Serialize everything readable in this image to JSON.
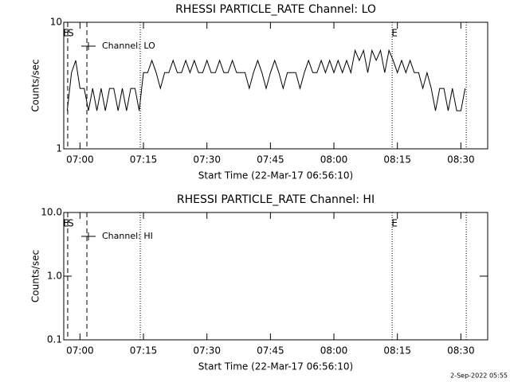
{
  "chart_data": [
    {
      "type": "line",
      "title": "RHESSI PARTICLE_RATE Channel: LO",
      "xlabel": "Start Time (22-Mar-17 06:56:10)",
      "ylabel": "Counts/sec",
      "xlim": [
        "06:56:10",
        "08:36:20"
      ],
      "xticks": [
        "07:00",
        "07:15",
        "07:30",
        "07:45",
        "08:00",
        "08:15",
        "08:30"
      ],
      "ylim": [
        1,
        10
      ],
      "yticks": [
        1,
        10
      ],
      "log_y": true,
      "legend": "upper left",
      "vlines": [
        {
          "x": "06:57:06",
          "style": "dashed"
        },
        {
          "x": "07:01:38",
          "style": "dashed"
        },
        {
          "x": "07:14:15",
          "style": "dotted"
        },
        {
          "x": "08:13:46",
          "style": "dotted"
        },
        {
          "x": "08:31:16",
          "style": "dotted"
        }
      ],
      "annotations": [
        {
          "text": "E",
          "x": "06:56:45"
        },
        {
          "text": "S",
          "x": "06:57:50"
        },
        {
          "text": "E",
          "x": "08:14:20"
        }
      ],
      "series": [
        {
          "name": "Channel: LO",
          "color": "#000000",
          "x": [
            "06:57",
            "06:58",
            "06:59",
            "07:00",
            "07:01",
            "07:02",
            "07:03",
            "07:04",
            "07:05",
            "07:06",
            "07:07",
            "07:08",
            "07:09",
            "07:10",
            "07:11",
            "07:12",
            "07:13",
            "07:14",
            "07:15",
            "07:16",
            "07:17",
            "07:18",
            "07:19",
            "07:20",
            "07:21",
            "07:22",
            "07:23",
            "07:24",
            "07:25",
            "07:26",
            "07:27",
            "07:28",
            "07:29",
            "07:30",
            "07:31",
            "07:32",
            "07:33",
            "07:34",
            "07:35",
            "07:36",
            "07:37",
            "07:38",
            "07:39",
            "07:40",
            "07:41",
            "07:42",
            "07:43",
            "07:44",
            "07:45",
            "07:46",
            "07:47",
            "07:48",
            "07:49",
            "07:50",
            "07:51",
            "07:52",
            "07:53",
            "07:54",
            "07:55",
            "07:56",
            "07:57",
            "07:58",
            "07:59",
            "08:00",
            "08:01",
            "08:02",
            "08:03",
            "08:04",
            "08:05",
            "08:06",
            "08:07",
            "08:08",
            "08:09",
            "08:10",
            "08:11",
            "08:12",
            "08:13",
            "08:14",
            "08:15",
            "08:16",
            "08:17",
            "08:18",
            "08:19",
            "08:20",
            "08:21",
            "08:22",
            "08:23",
            "08:24",
            "08:25",
            "08:26",
            "08:27",
            "08:28",
            "08:29",
            "08:30",
            "08:31"
          ],
          "values": [
            2,
            4,
            5,
            3,
            3,
            2,
            3,
            2,
            3,
            2,
            3,
            3,
            2,
            3,
            2,
            3,
            3,
            2,
            4,
            4,
            5,
            4,
            3,
            4,
            4,
            5,
            4,
            4,
            5,
            4,
            5,
            4,
            4,
            5,
            4,
            4,
            5,
            4,
            4,
            5,
            4,
            4,
            4,
            3,
            4,
            5,
            4,
            3,
            4,
            5,
            4,
            3,
            4,
            4,
            4,
            3,
            4,
            5,
            4,
            4,
            5,
            4,
            5,
            4,
            5,
            4,
            5,
            4,
            6,
            5,
            6,
            4,
            6,
            5,
            6,
            4,
            6,
            5,
            4,
            5,
            4,
            5,
            4,
            4,
            3,
            4,
            3,
            2,
            3,
            3,
            2,
            3,
            2,
            2,
            3
          ]
        }
      ]
    },
    {
      "type": "line",
      "title": "RHESSI PARTICLE_RATE Channel: HI",
      "xlabel": "Start Time (22-Mar-17 06:56:10)",
      "ylabel": "Counts/sec",
      "xlim": [
        "06:56:10",
        "08:36:20"
      ],
      "xticks": [
        "07:00",
        "07:15",
        "07:30",
        "07:45",
        "08:00",
        "08:15",
        "08:30"
      ],
      "ylim": [
        0.1,
        10
      ],
      "yticks": [
        0.1,
        {
          "value": 1,
          "label": "1.0"
        },
        {
          "value": 10,
          "label": "10.0"
        }
      ],
      "log_y": true,
      "legend": "upper left",
      "vlines": [
        {
          "x": "06:57:06",
          "style": "dashed"
        },
        {
          "x": "07:01:38",
          "style": "dashed"
        },
        {
          "x": "07:14:15",
          "style": "dotted"
        },
        {
          "x": "08:13:46",
          "style": "dotted"
        },
        {
          "x": "08:31:16",
          "style": "dotted"
        }
      ],
      "annotations": [
        {
          "text": "E",
          "x": "06:56:45"
        },
        {
          "text": "S",
          "x": "06:57:50"
        },
        {
          "text": "E",
          "x": "08:14:20"
        }
      ],
      "series": [
        {
          "name": "Channel: HI",
          "color": "#000000",
          "x": [],
          "values": []
        }
      ]
    }
  ],
  "footer": "2-Sep-2022 05:55"
}
